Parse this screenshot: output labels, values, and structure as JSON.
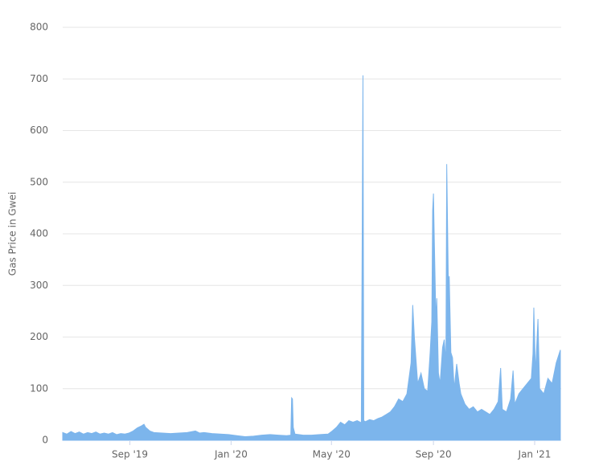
{
  "chart_data": {
    "type": "area",
    "y_label": "Gas Price in Gwei",
    "x": [
      0,
      5,
      10,
      15,
      20,
      25,
      30,
      35,
      40,
      45,
      50,
      55,
      60,
      65,
      70,
      75,
      80,
      85,
      90,
      95,
      98,
      100,
      105,
      110,
      120,
      130,
      140,
      150,
      160,
      165,
      170,
      180,
      190,
      200,
      210,
      220,
      230,
      240,
      250,
      260,
      270,
      275,
      276,
      277,
      278,
      280,
      290,
      300,
      310,
      320,
      325,
      330,
      335,
      340,
      345,
      350,
      355,
      360,
      362,
      363,
      365,
      370,
      375,
      380,
      385,
      390,
      395,
      400,
      405,
      410,
      415,
      420,
      422,
      424,
      428,
      432,
      436,
      440,
      443,
      445,
      446,
      447,
      448,
      450,
      451,
      453,
      455,
      458,
      460,
      462,
      463,
      465,
      466,
      468,
      470,
      472,
      475,
      478,
      480,
      485,
      490,
      495,
      500,
      505,
      510,
      515,
      520,
      525,
      528,
      530,
      535,
      540,
      543,
      545,
      550,
      555,
      560,
      565,
      567,
      568,
      570,
      573,
      575,
      580,
      585,
      590,
      595,
      600
    ],
    "series": [
      {
        "color": "#7cb5ec",
        "values": [
          15,
          12,
          17,
          13,
          16,
          12,
          15,
          13,
          16,
          12,
          14,
          12,
          15,
          11,
          13,
          12,
          14,
          18,
          24,
          28,
          31,
          25,
          18,
          15,
          14,
          13,
          14,
          15,
          18,
          14,
          15,
          13,
          12,
          11,
          9,
          7,
          8,
          10,
          11,
          10,
          9,
          10,
          82,
          80,
          25,
          12,
          10,
          10,
          11,
          12,
          18,
          25,
          35,
          30,
          38,
          35,
          38,
          34,
          707,
          38,
          36,
          40,
          38,
          42,
          45,
          50,
          55,
          65,
          80,
          75,
          90,
          150,
          262,
          200,
          110,
          130,
          100,
          95,
          170,
          230,
          445,
          478,
          390,
          230,
          275,
          130,
          110,
          180,
          195,
          150,
          535,
          300,
          318,
          170,
          160,
          100,
          148,
          110,
          90,
          70,
          60,
          65,
          55,
          60,
          55,
          50,
          60,
          75,
          140,
          60,
          55,
          80,
          135,
          70,
          90,
          100,
          110,
          120,
          168,
          257,
          130,
          235,
          100,
          90,
          120,
          110,
          150,
          175
        ]
      }
    ],
    "xlim": [
      0,
      601
    ],
    "xticks": [
      {
        "value": 81,
        "label": "Sep '19"
      },
      {
        "value": 203,
        "label": "Jan '20"
      },
      {
        "value": 324,
        "label": "May '20"
      },
      {
        "value": 447,
        "label": "Sep '20"
      },
      {
        "value": 569,
        "label": "Jan '21"
      }
    ],
    "ylim": [
      0,
      800
    ],
    "yticks": [
      0,
      100,
      200,
      300,
      400,
      500,
      600,
      700,
      800
    ],
    "grid": true
  }
}
